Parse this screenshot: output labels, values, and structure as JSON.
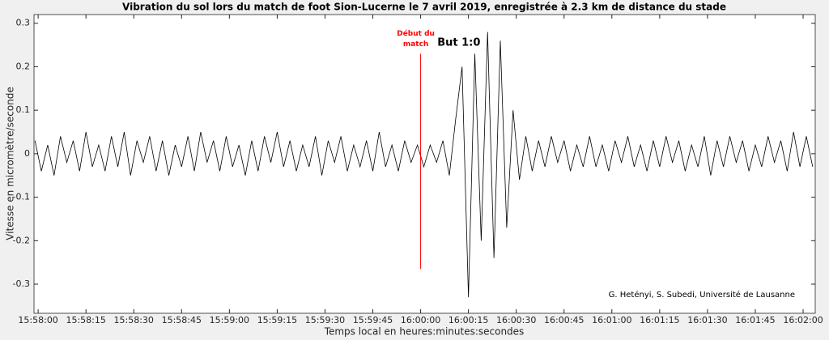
{
  "chart_data": {
    "type": "line",
    "title": "Vibration du sol lors du match de foot Sion-Lucerne le 7 avril 2019, enregistrée à 2.3 km de distance du stade",
    "x_label": "Temps local en heures:minutes:secondes",
    "y_label": "Vitesse en micromètre/seconde",
    "x": [
      57479,
      57481,
      57483,
      57485,
      57487,
      57489,
      57491,
      57493,
      57495,
      57497,
      57499,
      57501,
      57503,
      57505,
      57507,
      57509,
      57511,
      57513,
      57515,
      57517,
      57519,
      57521,
      57523,
      57525,
      57527,
      57529,
      57531,
      57533,
      57535,
      57537,
      57539,
      57541,
      57543,
      57545,
      57547,
      57549,
      57551,
      57553,
      57555,
      57557,
      57559,
      57561,
      57563,
      57565,
      57567,
      57569,
      57571,
      57573,
      57575,
      57577,
      57579,
      57581,
      57583,
      57585,
      57587,
      57589,
      57591,
      57593,
      57595,
      57597,
      57599,
      57601,
      57603,
      57605,
      57607,
      57609,
      57611,
      57613,
      57615,
      57617,
      57619,
      57621,
      57623,
      57625,
      57627,
      57629,
      57631,
      57633,
      57635,
      57637,
      57639,
      57641,
      57643,
      57645,
      57647,
      57649,
      57651,
      57653,
      57655,
      57657,
      57659,
      57661,
      57663,
      57665,
      57667,
      57669,
      57671,
      57673,
      57675,
      57677,
      57679,
      57681,
      57683,
      57685,
      57687,
      57689,
      57691,
      57693,
      57695,
      57697,
      57699,
      57701,
      57703,
      57705,
      57707,
      57709,
      57711,
      57713,
      57715,
      57717,
      57719,
      57721,
      57723
    ],
    "series": [
      {
        "color": "#000000",
        "values": [
          0.03,
          -0.04,
          0.02,
          -0.05,
          0.04,
          -0.02,
          0.03,
          -0.04,
          0.05,
          -0.03,
          0.02,
          -0.04,
          0.04,
          -0.03,
          0.05,
          -0.05,
          0.03,
          -0.02,
          0.04,
          -0.04,
          0.03,
          -0.05,
          0.02,
          -0.03,
          0.04,
          -0.04,
          0.05,
          -0.02,
          0.03,
          -0.04,
          0.04,
          -0.03,
          0.02,
          -0.05,
          0.03,
          -0.04,
          0.04,
          -0.02,
          0.05,
          -0.03,
          0.03,
          -0.04,
          0.02,
          -0.03,
          0.04,
          -0.05,
          0.03,
          -0.02,
          0.04,
          -0.04,
          0.02,
          -0.03,
          0.03,
          -0.04,
          0.05,
          -0.03,
          0.02,
          -0.04,
          0.03,
          -0.02,
          0.02,
          -0.03,
          0.02,
          -0.02,
          0.03,
          -0.05,
          0.08,
          0.2,
          -0.33,
          0.23,
          -0.2,
          0.28,
          -0.24,
          0.26,
          -0.17,
          0.1,
          -0.06,
          0.04,
          -0.04,
          0.03,
          -0.03,
          0.04,
          -0.02,
          0.03,
          -0.04,
          0.02,
          -0.03,
          0.04,
          -0.03,
          0.02,
          -0.04,
          0.03,
          -0.02,
          0.04,
          -0.03,
          0.02,
          -0.04,
          0.03,
          -0.03,
          0.04,
          -0.02,
          0.03,
          -0.04,
          0.02,
          -0.03,
          0.04,
          -0.05,
          0.03,
          -0.03,
          0.04,
          -0.02,
          0.03,
          -0.04,
          0.02,
          -0.03,
          0.04,
          -0.02,
          0.03,
          -0.04,
          0.05,
          -0.03,
          0.04,
          -0.03
        ]
      }
    ],
    "xlim": [
      57478.7,
      57723.8
    ],
    "ylim": [
      -0.367,
      0.32
    ],
    "xticks": [
      {
        "value": 57480,
        "label": "15:58:00"
      },
      {
        "value": 57495,
        "label": "15:58:15"
      },
      {
        "value": 57510,
        "label": "15:58:30"
      },
      {
        "value": 57525,
        "label": "15:58:45"
      },
      {
        "value": 57540,
        "label": "15:59:00"
      },
      {
        "value": 57555,
        "label": "15:59:15"
      },
      {
        "value": 57570,
        "label": "15:59:30"
      },
      {
        "value": 57585,
        "label": "15:59:45"
      },
      {
        "value": 57600,
        "label": "16:00:00"
      },
      {
        "value": 57615,
        "label": "16:00:15"
      },
      {
        "value": 57630,
        "label": "16:00:30"
      },
      {
        "value": 57645,
        "label": "16:00:45"
      },
      {
        "value": 57660,
        "label": "16:01:00"
      },
      {
        "value": 57675,
        "label": "16:01:15"
      },
      {
        "value": 57690,
        "label": "16:01:30"
      },
      {
        "value": 57705,
        "label": "16:01:45"
      },
      {
        "value": 57720,
        "label": "16:02:00"
      }
    ],
    "yticks": [
      -0.3,
      -0.2,
      -0.1,
      0,
      0.1,
      0.2,
      0.3
    ],
    "annotations": [
      {
        "text": [
          "Début du",
          "match"
        ],
        "color": "#ff0000",
        "x": 57600,
        "y": [
          0.23,
          -0.265
        ]
      },
      {
        "text": "But 1:0",
        "x": 57612,
        "y": 0.255
      }
    ],
    "credit": "G. Hetényi, S. Subedi, Université de Lausanne"
  }
}
